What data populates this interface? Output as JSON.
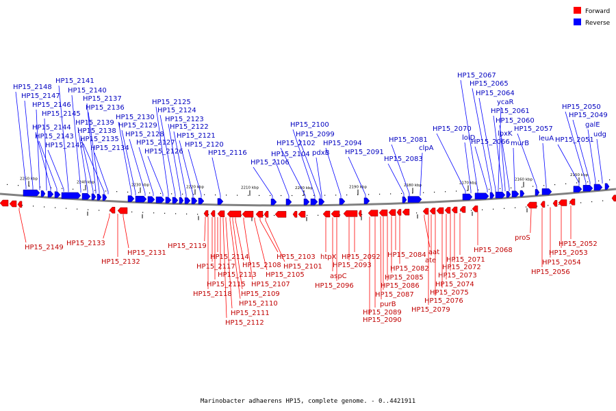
{
  "caption": "Marinobacter adhaerens HP15, complete genome. - 0..4421911",
  "colors": {
    "forward": "#ff0000",
    "reverse": "#0000ff",
    "forward_label": "#c00000",
    "reverse_label": "#0000c0",
    "backbone": "#808080"
  },
  "legend": [
    {
      "key": "forward",
      "label": "Forward",
      "color": "#ff0000"
    },
    {
      "key": "reverse",
      "label": "Reverse",
      "color": "#0000ff"
    }
  ],
  "ticks": [
    "2250 kbp",
    "2240 kbp",
    "2230 kbp",
    "2220 kbp",
    "2210 kbp",
    "2200 kbp",
    "2190 kbp",
    "2180 kbp",
    "2170 kbp",
    "2160 kbp",
    "2150 kbp"
  ],
  "reverse_genes": [
    "HP15_2148",
    "HP15_2147",
    "HP15_2146",
    "HP15_2145",
    "HP15_2144",
    "HP15_2143",
    "HP15_2142",
    "HP15_2141",
    "HP15_2140",
    "HP15_2139",
    "HP15_2138",
    "HP15_2137",
    "HP15_2136",
    "HP15_2135",
    "HP15_2134",
    "HP15_2130",
    "HP15_2129",
    "HP15_2128",
    "HP15_2127",
    "HP15_2126",
    "HP15_2125",
    "HP15_2124",
    "HP15_2123",
    "HP15_2122",
    "HP15_2121",
    "HP15_2120",
    "HP15_2116",
    "HP15_2106",
    "HP15_2104",
    "HP15_2102",
    "HP15_2100",
    "HP15_2099",
    "pdxB",
    "HP15_2094",
    "HP15_2091",
    "HP15_2083",
    "HP15_2081",
    "clpA",
    "HP15_2070",
    "lolD",
    "HP15_2067",
    "HP15_2066",
    "HP15_2065",
    "HP15_2064",
    "ycaR",
    "HP15_2061",
    "lpxK",
    "HP15_2060",
    "murB",
    "HP15_2057",
    "leuA",
    "HP15_2051",
    "HP15_2050",
    "HP15_2049",
    "galE",
    "udg"
  ],
  "forward_genes": [
    "HP15_2149",
    "HP15_2133",
    "HP15_2132",
    "HP15_2131",
    "HP15_2119",
    "HP15_2118",
    "HP15_2117",
    "HP15_2115",
    "HP15_2114",
    "HP15_2113",
    "HP15_2112",
    "HP15_2111",
    "HP15_2110",
    "HP15_2109",
    "HP15_2108",
    "HP15_2107",
    "HP15_2105",
    "HP15_2103",
    "HP15_2101",
    "htpX",
    "aspC",
    "HP15_2096",
    "HP15_2093",
    "HP15_2092",
    "HP15_2090",
    "HP15_2089",
    "purB",
    "HP15_2087",
    "HP15_2086",
    "HP15_2085",
    "HP15_2084",
    "HP15_2082",
    "aat",
    "ate",
    "HP15_2079",
    "HP15_2076",
    "HP15_2075",
    "HP15_2074",
    "HP15_2073",
    "HP15_2072",
    "HP15_2071",
    "HP15_2068",
    "proS",
    "HP15_2056",
    "HP15_2054",
    "HP15_2053",
    "HP15_2052"
  ]
}
